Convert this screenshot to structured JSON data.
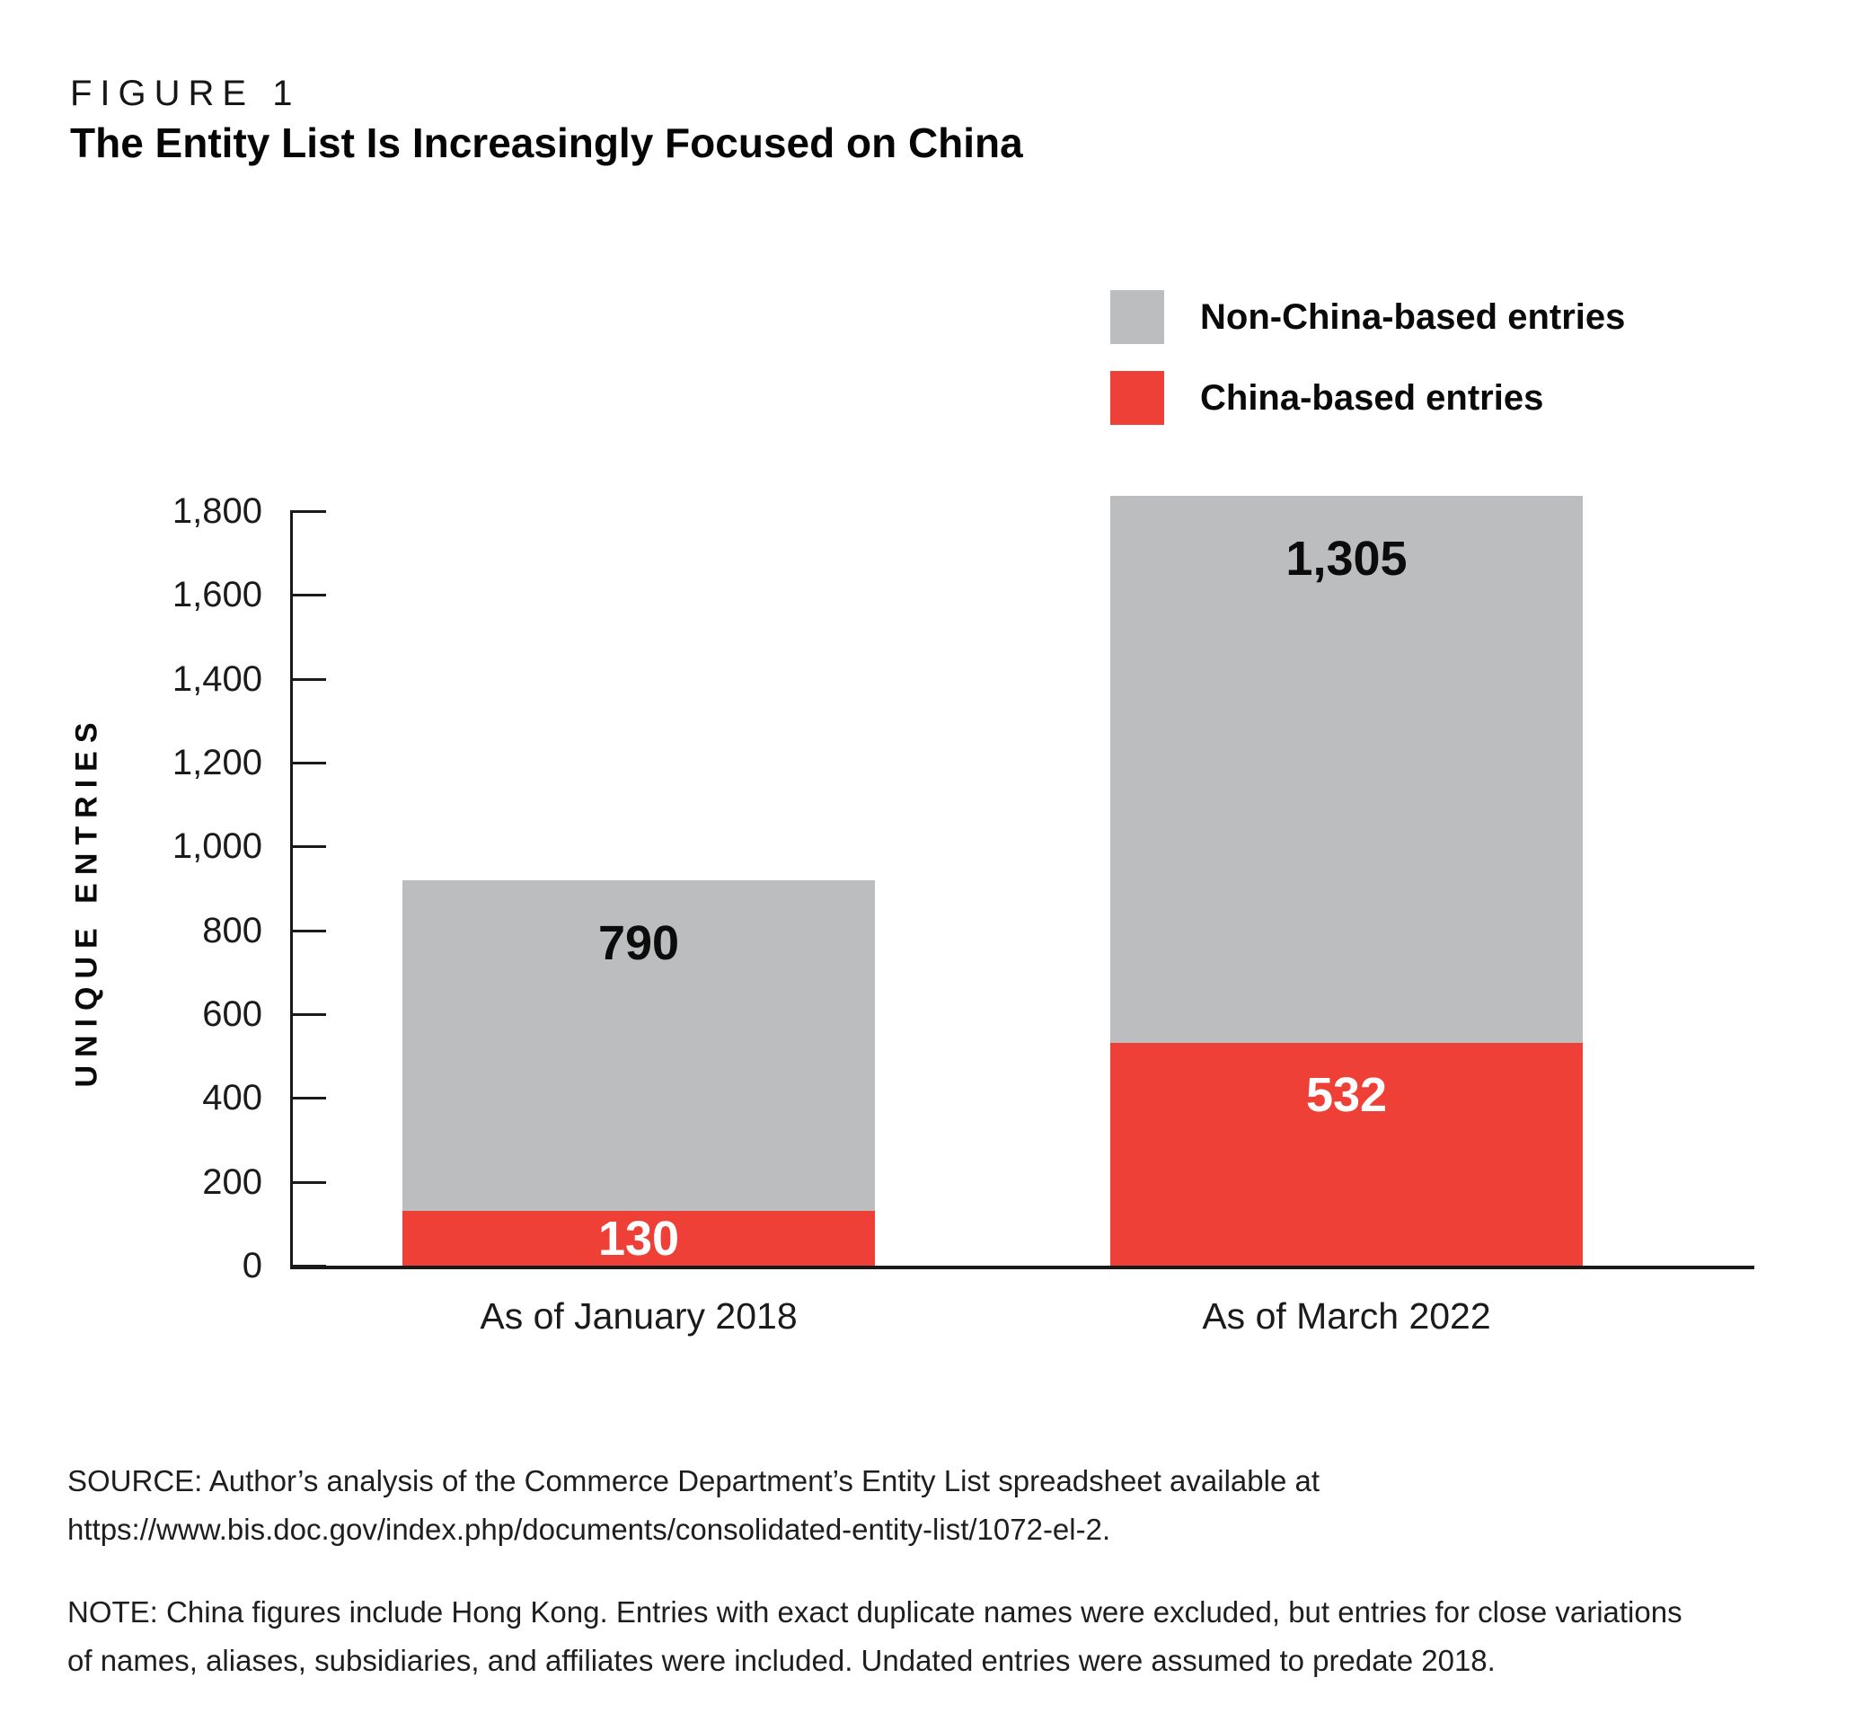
{
  "figure": {
    "label": "FIGURE 1",
    "title": "The Entity List Is Increasingly Focused on China"
  },
  "legend": [
    {
      "label": "Non-China-based entries",
      "color": "#bcbdbf"
    },
    {
      "label": "China-based entries",
      "color": "#ee4036"
    }
  ],
  "chart_data": {
    "type": "bar",
    "stacked": true,
    "title": "The Entity List Is Increasingly Focused on China",
    "xlabel": "",
    "ylabel": "UNIQUE ENTRIES",
    "ylim": [
      0,
      1800
    ],
    "grid": false,
    "legend_position": "top-right",
    "categories": [
      "As of January 2018",
      "As of March 2022"
    ],
    "series": [
      {
        "name": "China-based entries",
        "color": "#ee4036",
        "values": [
          130,
          532
        ],
        "value_labels": [
          "130",
          "532"
        ],
        "label_color": "#ffffff"
      },
      {
        "name": "Non-China-based entries",
        "color": "#bcbdbf",
        "values": [
          790,
          1305
        ],
        "value_labels": [
          "790",
          "1,305"
        ],
        "label_color": "#0c0c0c"
      }
    ],
    "totals": [
      920,
      1837
    ],
    "yticks": [
      {
        "value": 0,
        "label": "0"
      },
      {
        "value": 200,
        "label": "200"
      },
      {
        "value": 400,
        "label": "400"
      },
      {
        "value": 600,
        "label": "600"
      },
      {
        "value": 800,
        "label": "800"
      },
      {
        "value": 1000,
        "label": "1,000"
      },
      {
        "value": 1200,
        "label": "1,200"
      },
      {
        "value": 1400,
        "label": "1,400"
      },
      {
        "value": 1600,
        "label": "1,600"
      },
      {
        "value": 1800,
        "label": "1,800"
      }
    ]
  },
  "source": {
    "lines": [
      "SOURCE: Author’s analysis of the Commerce Department’s Entity List spreadsheet available at",
      "https://www.bis.doc.gov/index.php/documents/consolidated-entity-list/1072-el-2."
    ]
  },
  "note": {
    "lines": [
      "NOTE: China figures include Hong Kong. Entries with exact duplicate names were excluded, but entries for close variations",
      "of names, aliases, subsidiaries, and affiliates were included. Undated entries were assumed to predate 2018."
    ]
  }
}
